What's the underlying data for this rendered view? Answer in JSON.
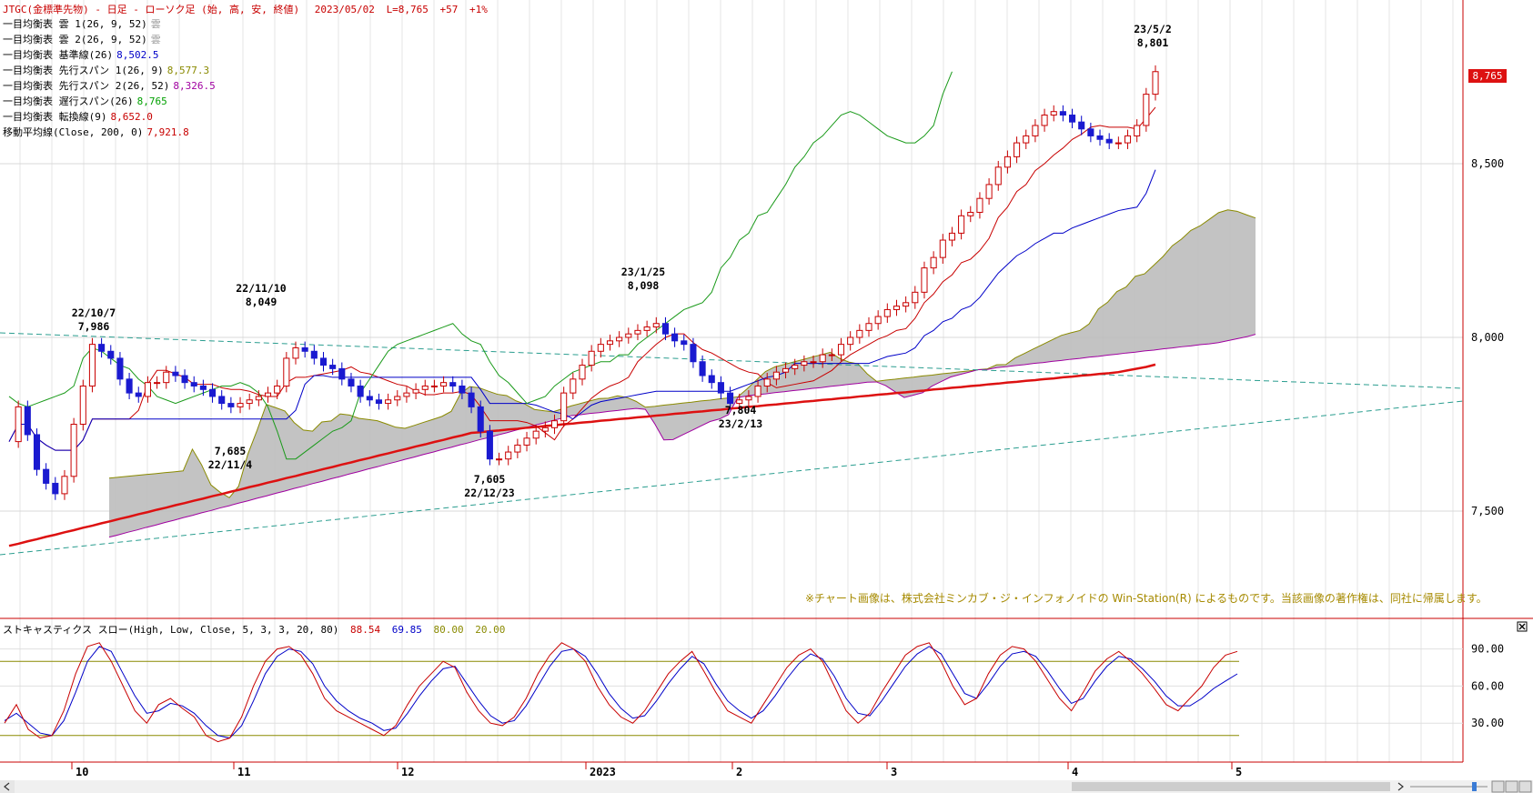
{
  "header": {
    "title": "JTGC(金標準先物) - 日足 - ローソク足 (始, 高, 安, 終値)",
    "date": "2023/05/02",
    "last": "L=8,765",
    "change": "+57",
    "pct": "+1%"
  },
  "indicators": [
    {
      "label": "一目均衡表 雲 1(26, 9, 52)",
      "value": "雲",
      "color": "#999999"
    },
    {
      "label": "一目均衡表 雲 2(26, 9, 52)",
      "value": "雲",
      "color": "#999999"
    },
    {
      "label": "一目均衡表 基準線(26)",
      "value": "8,502.5",
      "color": "#0000c8"
    },
    {
      "label": "一目均衡表 先行スパン 1(26, 9)",
      "value": "8,577.3",
      "color": "#8a8a00"
    },
    {
      "label": "一目均衡表 先行スパン 2(26, 52)",
      "value": "8,326.5",
      "color": "#a000a0"
    },
    {
      "label": "一目均衡表 遅行スパン(26)",
      "value": "8,765",
      "color": "#00a000"
    },
    {
      "label": "一目均衡表 転換線(9)",
      "value": "8,652.0",
      "color": "#c80000"
    },
    {
      "label": "移動平均線(Close, 200, 0)",
      "value": "7,921.8",
      "color": "#c80000"
    }
  ],
  "price_badge": "8,765",
  "notice": "※チャート画像は、株式会社ミンカブ・ジ・インフォノイドの Win-Station(R) によるものです。当該画像の著作権は、同社に帰属します。",
  "stoch": {
    "label": "ストキャスティクス スロー(High, Low, Close, 5, 3, 3, 20, 80)",
    "k": "88.54",
    "d": "69.85",
    "upper": "80.00",
    "lower": "20.00"
  },
  "chart_data": {
    "type": "candlestick",
    "symbol": "JTGC",
    "y_axis": {
      "ticks": [
        "7,500",
        "8,000",
        "8,500"
      ],
      "range": [
        7350,
        8870
      ]
    },
    "x_axis": {
      "labels": [
        "10",
        "11",
        "12",
        "2023",
        "2",
        "3",
        "4",
        "5"
      ]
    },
    "annotations": [
      {
        "date": "22/10/7",
        "value": "7,986",
        "kind": "high"
      },
      {
        "date": "22/11/10",
        "value": "8,049",
        "kind": "high"
      },
      {
        "date": "22/11/4",
        "value": "7,685",
        "kind": "low"
      },
      {
        "date": "22/12/23",
        "value": "7,605",
        "kind": "low"
      },
      {
        "date": "23/1/25",
        "value": "8,098",
        "kind": "high"
      },
      {
        "date": "23/2/13",
        "value": "7,804",
        "kind": "low"
      },
      {
        "date": "23/5/2",
        "value": "8,801",
        "kind": "high"
      }
    ],
    "close": [
      7700,
      7800,
      7720,
      7620,
      7580,
      7550,
      7600,
      7750,
      7860,
      7980,
      7960,
      7940,
      7880,
      7840,
      7830,
      7870,
      7870,
      7900,
      7890,
      7870,
      7860,
      7850,
      7830,
      7810,
      7800,
      7810,
      7820,
      7830,
      7840,
      7860,
      7940,
      7970,
      7960,
      7940,
      7920,
      7910,
      7880,
      7860,
      7830,
      7820,
      7810,
      7820,
      7830,
      7840,
      7850,
      7860,
      7860,
      7870,
      7860,
      7840,
      7800,
      7730,
      7650,
      7650,
      7670,
      7690,
      7710,
      7730,
      7740,
      7760,
      7840,
      7880,
      7920,
      7960,
      7980,
      7990,
      8000,
      8010,
      8020,
      8030,
      8040,
      8010,
      7990,
      7980,
      7930,
      7890,
      7870,
      7840,
      7810,
      7820,
      7830,
      7860,
      7880,
      7900,
      7910,
      7920,
      7930,
      7930,
      7950,
      7950,
      7980,
      8000,
      8020,
      8040,
      8060,
      8080,
      8090,
      8100,
      8130,
      8200,
      8230,
      8280,
      8300,
      8350,
      8360,
      8400,
      8440,
      8490,
      8520,
      8560,
      8580,
      8610,
      8640,
      8650,
      8640,
      8620,
      8600,
      8580,
      8570,
      8560,
      8560,
      8580,
      8610,
      8700,
      8765
    ],
    "ma200": [
      7400,
      7406,
      7413,
      7419,
      7426,
      7432,
      7439,
      7445,
      7452,
      7458,
      7465,
      7471,
      7478,
      7484,
      7491,
      7497,
      7504,
      7510,
      7517,
      7523,
      7530,
      7536,
      7543,
      7549,
      7556,
      7562,
      7569,
      7575,
      7582,
      7588,
      7595,
      7601,
      7608,
      7614,
      7621,
      7627,
      7634,
      7640,
      7647,
      7653,
      7660,
      7666,
      7673,
      7679,
      7686,
      7692,
      7699,
      7705,
      7712,
      7718,
      7725,
      7727,
      7730,
      7732,
      7735,
      7737,
      7740,
      7742,
      7745,
      7747,
      7750,
      7752,
      7755,
      7757,
      7760,
      7762,
      7765,
      7767,
      7770,
      7772,
      7775,
      7777,
      7780,
      7782,
      7785,
      7787,
      7790,
      7792,
      7795,
      7797,
      7800,
      7802,
      7805,
      7807,
      7810,
      7812,
      7815,
      7817,
      7820,
      7822,
      7825,
      7827,
      7830,
      7832,
      7835,
      7837,
      7840,
      7842,
      7845,
      7847,
      7850,
      7852,
      7855,
      7857,
      7860,
      7862,
      7865,
      7867,
      7870,
      7872,
      7875,
      7877,
      7880,
      7882,
      7885,
      7887,
      7890,
      7892,
      7895,
      7897,
      7900,
      7905,
      7910,
      7915,
      7921.8
    ],
    "stochastic_k": [
      30,
      45,
      25,
      18,
      20,
      40,
      70,
      92,
      95,
      80,
      60,
      40,
      30,
      45,
      50,
      42,
      35,
      20,
      15,
      18,
      35,
      60,
      80,
      90,
      92,
      85,
      70,
      50,
      40,
      35,
      30,
      25,
      20,
      28,
      45,
      60,
      70,
      80,
      75,
      55,
      40,
      30,
      28,
      35,
      50,
      70,
      85,
      95,
      90,
      80,
      60,
      45,
      35,
      30,
      40,
      55,
      70,
      80,
      88,
      72,
      55,
      40,
      35,
      30,
      45,
      60,
      75,
      85,
      90,
      80,
      60,
      40,
      30,
      38,
      55,
      70,
      85,
      92,
      95,
      80,
      60,
      45,
      50,
      70,
      85,
      92,
      90,
      80,
      65,
      50,
      40,
      55,
      72,
      82,
      88,
      80,
      70,
      58,
      45,
      40,
      50,
      60,
      75,
      85,
      88
    ],
    "stochastic_d": [
      32,
      38,
      30,
      22,
      20,
      32,
      55,
      80,
      92,
      88,
      70,
      52,
      38,
      40,
      46,
      44,
      38,
      28,
      20,
      18,
      28,
      48,
      70,
      84,
      90,
      88,
      78,
      60,
      48,
      40,
      34,
      30,
      24,
      26,
      38,
      52,
      64,
      74,
      76,
      62,
      48,
      36,
      30,
      32,
      44,
      60,
      76,
      88,
      90,
      84,
      70,
      54,
      42,
      34,
      36,
      48,
      62,
      74,
      84,
      78,
      62,
      48,
      40,
      34,
      40,
      52,
      66,
      78,
      86,
      82,
      68,
      50,
      38,
      36,
      48,
      62,
      76,
      86,
      92,
      86,
      70,
      54,
      50,
      62,
      76,
      86,
      88,
      84,
      72,
      58,
      46,
      50,
      64,
      76,
      84,
      82,
      74,
      64,
      52,
      44,
      44,
      50,
      58,
      64,
      69.85
    ],
    "stochastic_levels": {
      "upper": 80,
      "lower": 20
    }
  }
}
